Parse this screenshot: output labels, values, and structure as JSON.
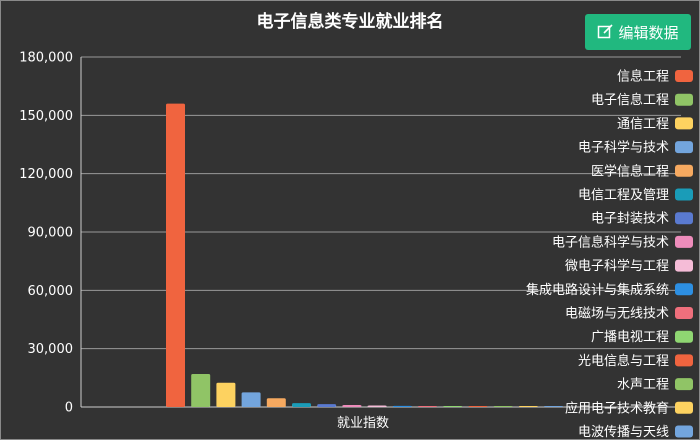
{
  "header": {
    "edit_label": "编辑数据"
  },
  "chart_data": {
    "type": "bar",
    "title": "电子信息类专业就业排名",
    "xlabel": "",
    "ylabel": "",
    "categories": [
      "就业指数"
    ],
    "ylim": [
      0,
      180000
    ],
    "yticks": [
      "0",
      "30,000",
      "60,000",
      "90,000",
      "120,000",
      "150,000",
      "180,000"
    ],
    "legend_position": "right",
    "series": [
      {
        "name": "信息工程",
        "values": [
          156000
        ],
        "color": "#f0643f"
      },
      {
        "name": "电子信息工程",
        "values": [
          17000
        ],
        "color": "#90c466"
      },
      {
        "name": "通信工程",
        "values": [
          12500
        ],
        "color": "#fdd260"
      },
      {
        "name": "电子科学与技术",
        "values": [
          7500
        ],
        "color": "#73a5dd"
      },
      {
        "name": "医学信息工程",
        "values": [
          4500
        ],
        "color": "#f6a960"
      },
      {
        "name": "电信工程及管理",
        "values": [
          2000
        ],
        "color": "#1a9cb8"
      },
      {
        "name": "电子封装技术",
        "values": [
          1500
        ],
        "color": "#5a7ad0"
      },
      {
        "name": "电子信息科学与技术",
        "values": [
          1000
        ],
        "color": "#ee8cbb"
      },
      {
        "name": "微电子科学与工程",
        "values": [
          800
        ],
        "color": "#f5bcd7"
      },
      {
        "name": "集成电路设计与集成系统",
        "values": [
          600
        ],
        "color": "#2d8fe2"
      },
      {
        "name": "电磁场与无线技术",
        "values": [
          400
        ],
        "color": "#ef6f7c"
      },
      {
        "name": "广播电视工程",
        "values": [
          300
        ],
        "color": "#8fd672"
      },
      {
        "name": "光电信息与工程",
        "values": [
          200
        ],
        "color": "#f0643f"
      },
      {
        "name": "水声工程",
        "values": [
          150
        ],
        "color": "#90c466"
      },
      {
        "name": "应用电子技术教育",
        "values": [
          100
        ],
        "color": "#fdd260"
      },
      {
        "name": "电波传播与天线",
        "values": [
          50
        ],
        "color": "#73a5dd"
      }
    ]
  }
}
